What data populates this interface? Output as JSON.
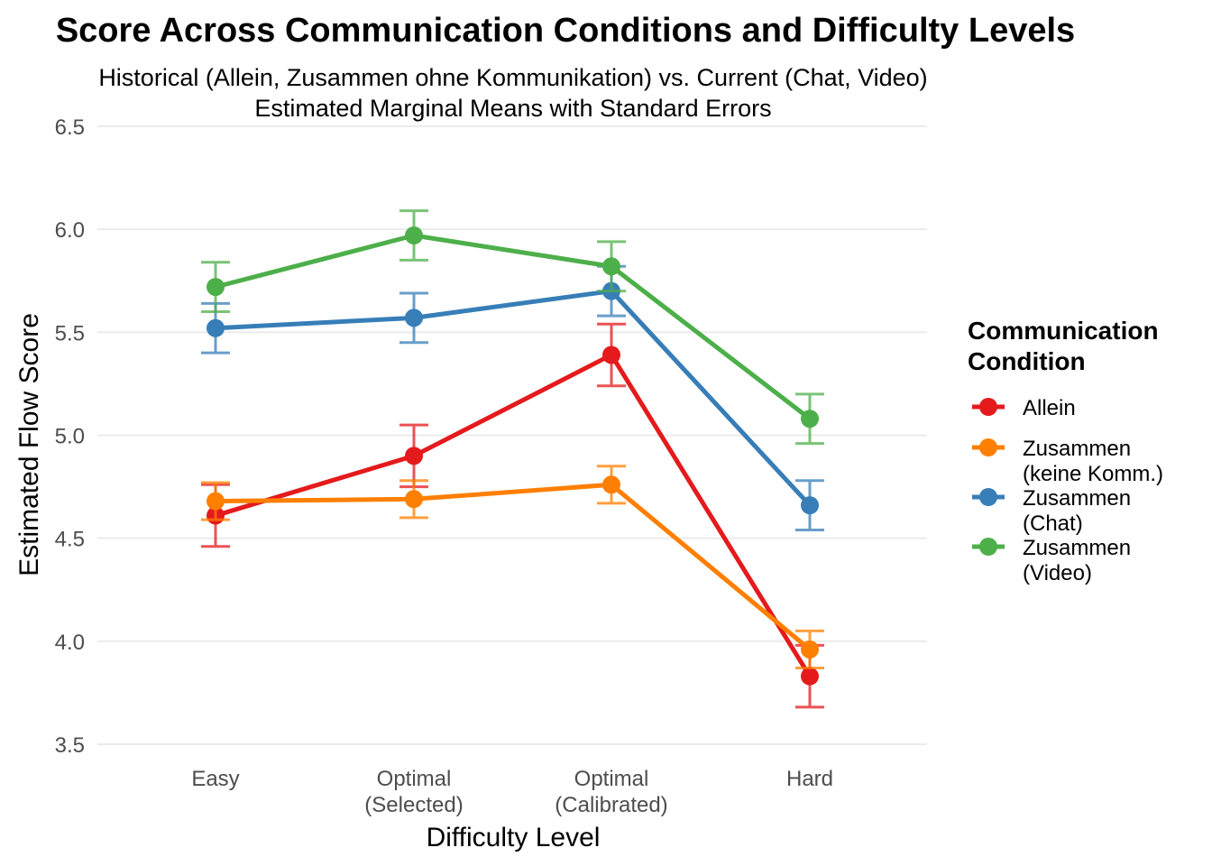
{
  "chart_data": {
    "type": "line",
    "title": "Score Across Communication Conditions and Difficulty Levels",
    "subtitle": [
      "Historical (Allein, Zusammen ohne Kommunikation) vs. Current (Chat, Video)",
      "Estimated Marginal Means with Standard Errors"
    ],
    "xlabel": "Difficulty Level",
    "ylabel": "Estimated Flow Score",
    "categories": [
      [
        "Easy"
      ],
      [
        "Optimal",
        "(Selected)"
      ],
      [
        "Optimal",
        "(Calibrated)"
      ],
      [
        "Hard"
      ]
    ],
    "ylim": [
      3.5,
      6.5
    ],
    "yticks": [
      "3.5",
      "4.0",
      "4.5",
      "5.0",
      "5.5",
      "6.0",
      "6.5"
    ],
    "grid": true,
    "legend": {
      "title": [
        "Communication",
        "Condition"
      ],
      "position": "right"
    },
    "series": [
      {
        "name": [
          "Allein"
        ],
        "color": "#E41A1C",
        "values": [
          4.61,
          4.9,
          5.39,
          3.83
        ],
        "se": [
          0.15,
          0.15,
          0.15,
          0.15
        ]
      },
      {
        "name": [
          "Zusammen",
          "(keine Komm.)"
        ],
        "color": "#FF7F00",
        "values": [
          4.68,
          4.69,
          4.76,
          3.96
        ],
        "se": [
          0.09,
          0.09,
          0.09,
          0.09
        ]
      },
      {
        "name": [
          "Zusammen",
          "(Chat)"
        ],
        "color": "#377EB8",
        "values": [
          5.52,
          5.57,
          5.7,
          4.66
        ],
        "se": [
          0.12,
          0.12,
          0.12,
          0.12
        ]
      },
      {
        "name": [
          "Zusammen",
          "(Video)"
        ],
        "color": "#4DAF4A",
        "values": [
          5.72,
          5.97,
          5.82,
          5.08
        ],
        "se": [
          0.12,
          0.12,
          0.12,
          0.12
        ]
      }
    ]
  }
}
